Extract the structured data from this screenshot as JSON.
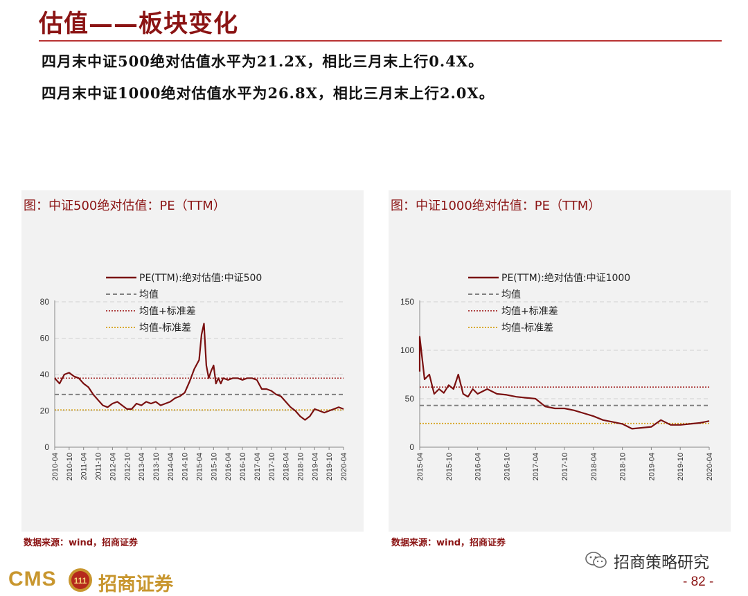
{
  "page": {
    "title": "估值——板块变化",
    "bullets": [
      "四月末中证500绝对估值水平为21.2X，相比三月末上行0.4X。",
      "四月末中证1000绝对估值水平为26.8X，相比三月末上行2.0X。"
    ],
    "source": "数据来源：wind，招商证券",
    "logo": {
      "en": "CMS",
      "cn": "招商证券",
      "badge_glyph": "111"
    },
    "wechat_label": "招商策略研究",
    "page_number": "- 82 -"
  },
  "colors": {
    "line": "#7a1010",
    "mean": "#808080",
    "plus_sd": "#a52a2a",
    "minus_sd": "#d4a017",
    "accent": "#8b1414"
  },
  "chart_data": [
    {
      "type": "line",
      "title": "图：中证500绝对估值：PE（TTM）",
      "ylim": [
        0,
        80
      ],
      "yticks": [
        0,
        20,
        40,
        60,
        80
      ],
      "x_range": [
        "2010-04",
        "2020-04"
      ],
      "xticks": [
        "2010-04",
        "2010-10",
        "2011-04",
        "2011-10",
        "2012-04",
        "2012-10",
        "2013-04",
        "2013-10",
        "2014-04",
        "2014-10",
        "2015-04",
        "2015-10",
        "2016-04",
        "2016-10",
        "2017-04",
        "2017-10",
        "2018-04",
        "2018-10",
        "2019-04",
        "2019-10",
        "2020-04"
      ],
      "legend": [
        "PE(TTM):绝对估值:中证500",
        "均值",
        "均值+标准差",
        "均值-标准差"
      ],
      "legend_placement": "top-left",
      "grid": true,
      "series": [
        {
          "name": "PE(TTM):绝对估值:中证500",
          "x": [
            "2010-04",
            "2010-06",
            "2010-08",
            "2010-10",
            "2010-12",
            "2011-02",
            "2011-04",
            "2011-06",
            "2011-08",
            "2011-10",
            "2011-12",
            "2012-02",
            "2012-04",
            "2012-06",
            "2012-08",
            "2012-10",
            "2012-12",
            "2013-02",
            "2013-04",
            "2013-06",
            "2013-08",
            "2013-10",
            "2013-12",
            "2014-02",
            "2014-04",
            "2014-06",
            "2014-08",
            "2014-10",
            "2014-12",
            "2015-02",
            "2015-04",
            "2015-05",
            "2015-06",
            "2015-07",
            "2015-08",
            "2015-09",
            "2015-10",
            "2015-11",
            "2015-12",
            "2016-01",
            "2016-02",
            "2016-04",
            "2016-06",
            "2016-08",
            "2016-10",
            "2016-12",
            "2017-02",
            "2017-04",
            "2017-06",
            "2017-08",
            "2017-10",
            "2017-12",
            "2018-02",
            "2018-04",
            "2018-06",
            "2018-08",
            "2018-10",
            "2018-12",
            "2019-02",
            "2019-04",
            "2019-06",
            "2019-08",
            "2019-10",
            "2019-12",
            "2020-02",
            "2020-04"
          ],
          "values": [
            38,
            35,
            40,
            41,
            39,
            38,
            35,
            33,
            29,
            26,
            23,
            22,
            24,
            25,
            23,
            21,
            21,
            24,
            23,
            25,
            24,
            25,
            23,
            24,
            25,
            27,
            28,
            30,
            36,
            43,
            48,
            62,
            68,
            45,
            38,
            42,
            45,
            35,
            38,
            35,
            38,
            37,
            38,
            38,
            37,
            38,
            38,
            37,
            32,
            32,
            31,
            29,
            28,
            25,
            22,
            20,
            17,
            15,
            17,
            21,
            20,
            19,
            20,
            21,
            22,
            21
          ]
        }
      ],
      "reference_lines": {
        "mean": 29,
        "mean_plus_sd": 38,
        "mean_minus_sd": 20.5
      }
    },
    {
      "type": "line",
      "title": "图：中证1000绝对估值：PE（TTM）",
      "ylim": [
        0,
        150
      ],
      "yticks": [
        0,
        50,
        100,
        150
      ],
      "x_range": [
        "2015-04",
        "2020-04"
      ],
      "xticks": [
        "2015-04",
        "2015-10",
        "2016-04",
        "2016-10",
        "2017-04",
        "2017-10",
        "2018-04",
        "2018-10",
        "2019-04",
        "2019-10",
        "2020-04"
      ],
      "legend": [
        "PE(TTM):绝对估值:中证1000",
        "均值",
        "均值+标准差",
        "均值-标准差"
      ],
      "legend_placement": "top-left",
      "grid": true,
      "series": [
        {
          "name": "PE(TTM):绝对估值:中证1000",
          "x": [
            "2015-01",
            "2015-02",
            "2015-04",
            "2015-05",
            "2015-06",
            "2015-07",
            "2015-08",
            "2015-09",
            "2015-10",
            "2015-11",
            "2015-12",
            "2016-01",
            "2016-02",
            "2016-03",
            "2016-04",
            "2016-06",
            "2016-08",
            "2016-10",
            "2016-12",
            "2017-02",
            "2017-04",
            "2017-06",
            "2017-08",
            "2017-10",
            "2017-12",
            "2018-02",
            "2018-04",
            "2018-06",
            "2018-08",
            "2018-10",
            "2018-12",
            "2019-02",
            "2019-04",
            "2019-06",
            "2019-08",
            "2019-10",
            "2019-12",
            "2020-02",
            "2020-04"
          ],
          "values": [
            78,
            90,
            114,
            70,
            75,
            55,
            60,
            56,
            64,
            60,
            75,
            55,
            52,
            60,
            55,
            60,
            55,
            54,
            52,
            51,
            50,
            42,
            40,
            40,
            38,
            35,
            32,
            28,
            26,
            24,
            19,
            20,
            21,
            28,
            23,
            23,
            24,
            25,
            27
          ]
        }
      ],
      "reference_lines": {
        "mean": 43,
        "mean_plus_sd": 62,
        "mean_minus_sd": 24.5
      }
    }
  ]
}
